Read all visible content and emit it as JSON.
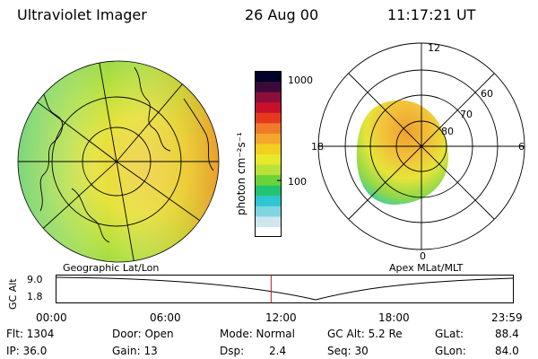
{
  "header": {
    "title": "Ultraviolet Imager",
    "date": "26 Aug 00",
    "time": "11:17:21 UT"
  },
  "geo_panel": {
    "label": "Geographic Lat/Lon",
    "icon": "earth-map-icon"
  },
  "apex_panel": {
    "label": "Apex MLat/MLT",
    "mlt_labels": [
      "12",
      "18",
      "6",
      "0"
    ],
    "mlat_labels": [
      "60",
      "70",
      "80"
    ]
  },
  "colorbar": {
    "unit_label": "photon cm⁻²s⁻¹",
    "tick_labels": [
      "1000",
      "100"
    ],
    "colors": [
      "#ffffff",
      "#cfe6ee",
      "#7fd6e0",
      "#2ec6d2",
      "#22c470",
      "#6bd23a",
      "#b8e23a",
      "#e6ea2a",
      "#f3d020",
      "#f4a72a",
      "#f07a2a",
      "#e63a20",
      "#c8102a",
      "#8a0f3a",
      "#3a0a3a",
      "#000028"
    ]
  },
  "altitude_plot": {
    "y_axis_label": "GC Alt",
    "y_ticks": [
      "9.0",
      "1.8"
    ],
    "x_ticks": [
      "00:00",
      "06:00",
      "12:00",
      "18:00",
      "23:59"
    ],
    "current_time_fraction": 0.4703,
    "marker_color": "#b02020"
  },
  "status": {
    "flt": "Flt: 1304",
    "ip": "IP: 36.0",
    "door": "Door: Open",
    "gain": "Gain: 13",
    "mode": "Mode: Normal",
    "dsp_label": "Dsp:",
    "dsp_value": "2.4",
    "gc_alt": "GC Alt: 5.2 Re",
    "seq": "Seq: 30",
    "glat_label": "GLat:",
    "glat_value": "88.4",
    "glon_label": "GLon:",
    "glon_value": "84.0"
  }
}
